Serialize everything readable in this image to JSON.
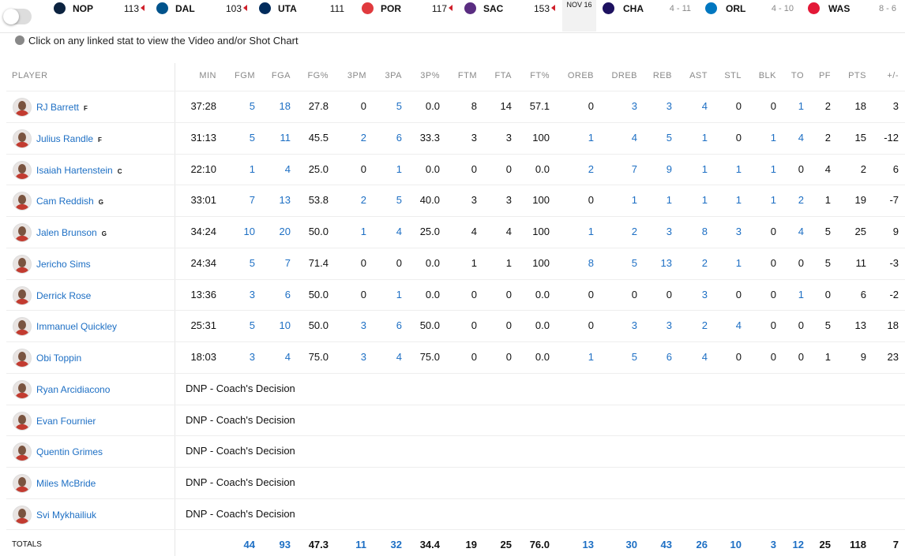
{
  "ticker": {
    "finished": [
      {
        "team": "NOP",
        "score": "113",
        "winner": true,
        "color": "#0c2340"
      },
      {
        "team": "DAL",
        "score": "103",
        "winner": true,
        "color": "#00538c"
      },
      {
        "team": "UTA",
        "score": "111",
        "winner": false,
        "color": "#002b5c"
      },
      {
        "team": "POR",
        "score": "117",
        "winner": true,
        "color": "#e03a3e"
      },
      {
        "team": "SAC",
        "score": "153",
        "winner": true,
        "color": "#5a2d81"
      }
    ],
    "date": "NOV 16",
    "upcoming": [
      {
        "team": "CHA",
        "record": "4 - 11",
        "color": "#1d1160"
      },
      {
        "team": "ORL",
        "record": "4 - 10",
        "color": "#0077c0"
      },
      {
        "team": "WAS",
        "record": "8 - 6",
        "color": "#e31837"
      }
    ]
  },
  "instruction": "Click on any linked stat to view the Video and/or Shot Chart",
  "table": {
    "headers": [
      "PLAYER",
      "MIN",
      "FGM",
      "FGA",
      "FG%",
      "3PM",
      "3PA",
      "3P%",
      "FTM",
      "FTA",
      "FT%",
      "OREB",
      "DREB",
      "REB",
      "AST",
      "STL",
      "BLK",
      "TO",
      "PF",
      "PTS",
      "+/-"
    ],
    "rows": [
      {
        "name": "RJ Barrett",
        "pos": "F",
        "stats": [
          "37:28",
          "5",
          "18",
          "27.8",
          "0",
          "5",
          "0.0",
          "8",
          "14",
          "57.1",
          "0",
          "3",
          "3",
          "4",
          "0",
          "0",
          "1",
          "2",
          "18",
          "3"
        ]
      },
      {
        "name": "Julius Randle",
        "pos": "F",
        "stats": [
          "31:13",
          "5",
          "11",
          "45.5",
          "2",
          "6",
          "33.3",
          "3",
          "3",
          "100",
          "1",
          "4",
          "5",
          "1",
          "0",
          "1",
          "4",
          "2",
          "15",
          "-12"
        ]
      },
      {
        "name": "Isaiah Hartenstein",
        "pos": "C",
        "stats": [
          "22:10",
          "1",
          "4",
          "25.0",
          "0",
          "1",
          "0.0",
          "0",
          "0",
          "0.0",
          "2",
          "7",
          "9",
          "1",
          "1",
          "1",
          "0",
          "4",
          "2",
          "6"
        ]
      },
      {
        "name": "Cam Reddish",
        "pos": "G",
        "stats": [
          "33:01",
          "7",
          "13",
          "53.8",
          "2",
          "5",
          "40.0",
          "3",
          "3",
          "100",
          "0",
          "1",
          "1",
          "1",
          "1",
          "1",
          "2",
          "1",
          "19",
          "-7"
        ]
      },
      {
        "name": "Jalen Brunson",
        "pos": "G",
        "stats": [
          "34:24",
          "10",
          "20",
          "50.0",
          "1",
          "4",
          "25.0",
          "4",
          "4",
          "100",
          "1",
          "2",
          "3",
          "8",
          "3",
          "0",
          "4",
          "5",
          "25",
          "9"
        ]
      },
      {
        "name": "Jericho Sims",
        "stats": [
          "24:34",
          "5",
          "7",
          "71.4",
          "0",
          "0",
          "0.0",
          "1",
          "1",
          "100",
          "8",
          "5",
          "13",
          "2",
          "1",
          "0",
          "0",
          "5",
          "11",
          "-3"
        ]
      },
      {
        "name": "Derrick Rose",
        "stats": [
          "13:36",
          "3",
          "6",
          "50.0",
          "0",
          "1",
          "0.0",
          "0",
          "0",
          "0.0",
          "0",
          "0",
          "0",
          "3",
          "0",
          "0",
          "1",
          "0",
          "6",
          "-2"
        ]
      },
      {
        "name": "Immanuel Quickley",
        "stats": [
          "25:31",
          "5",
          "10",
          "50.0",
          "3",
          "6",
          "50.0",
          "0",
          "0",
          "0.0",
          "0",
          "3",
          "3",
          "2",
          "4",
          "0",
          "0",
          "5",
          "13",
          "18"
        ]
      },
      {
        "name": "Obi Toppin",
        "stats": [
          "18:03",
          "3",
          "4",
          "75.0",
          "3",
          "4",
          "75.0",
          "0",
          "0",
          "0.0",
          "1",
          "5",
          "6",
          "4",
          "0",
          "0",
          "0",
          "1",
          "9",
          "23"
        ]
      },
      {
        "name": "Ryan Arcidiacono",
        "dnp": "DNP - Coach's Decision"
      },
      {
        "name": "Evan Fournier",
        "dnp": "DNP - Coach's Decision"
      },
      {
        "name": "Quentin Grimes",
        "dnp": "DNP - Coach's Decision"
      },
      {
        "name": "Miles McBride",
        "dnp": "DNP - Coach's Decision"
      },
      {
        "name": "Svi Mykhailiuk",
        "dnp": "DNP - Coach's Decision"
      }
    ],
    "totals": {
      "label": "TOTALS",
      "stats": [
        "44",
        "93",
        "47.3",
        "11",
        "32",
        "34.4",
        "19",
        "25",
        "76.0",
        "13",
        "30",
        "43",
        "26",
        "10",
        "3",
        "12",
        "25",
        "118",
        "7"
      ]
    }
  }
}
